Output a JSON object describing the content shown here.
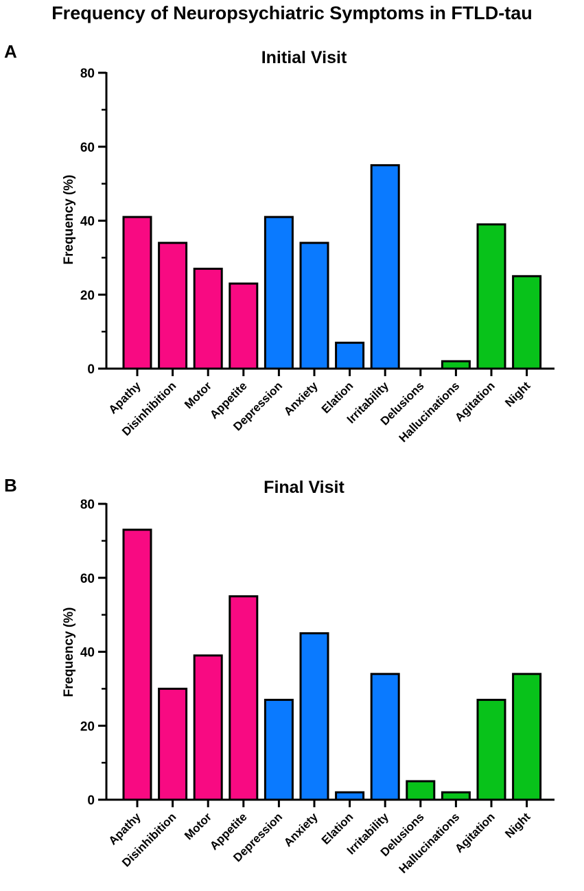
{
  "figure": {
    "title": "Frequency of Neuropsychiatric Symptoms in FTLD-tau"
  },
  "colors": {
    "pink": "#f80a82",
    "blue": "#0a7aff",
    "green": "#08c21a",
    "axis": "#000000"
  },
  "chart_data": [
    {
      "type": "bar",
      "panel_label": "A",
      "title": "Initial Visit",
      "xlabel": "",
      "ylabel": "Frequency (%)",
      "ylim": [
        0,
        80
      ],
      "yticks": [
        "0",
        "20",
        "40",
        "60",
        "80"
      ],
      "grid": false,
      "categories": [
        "Apathy",
        "Disinhibition",
        "Motor",
        "Appetite",
        "Depression",
        "Anxiety",
        "Elation",
        "Irritability",
        "Delusions",
        "Hallucinations",
        "Agitation",
        "Night"
      ],
      "values": [
        41,
        34,
        27,
        23,
        41,
        34,
        7,
        55,
        0,
        2,
        39,
        25
      ],
      "bar_colors": [
        "pink",
        "pink",
        "pink",
        "pink",
        "blue",
        "blue",
        "blue",
        "blue",
        "green",
        "green",
        "green",
        "green"
      ]
    },
    {
      "type": "bar",
      "panel_label": "B",
      "title": "Final Visit",
      "xlabel": "",
      "ylabel": "Frequency (%)",
      "ylim": [
        0,
        80
      ],
      "yticks": [
        "0",
        "20",
        "40",
        "60",
        "80"
      ],
      "grid": false,
      "categories": [
        "Apathy",
        "Disinhibition",
        "Motor",
        "Appetite",
        "Depression",
        "Anxiety",
        "Elation",
        "Irritability",
        "Delusions",
        "Hallucinations",
        "Agitation",
        "Night"
      ],
      "values": [
        73,
        30,
        39,
        55,
        27,
        45,
        2,
        34,
        5,
        2,
        27,
        34
      ],
      "bar_colors": [
        "pink",
        "pink",
        "pink",
        "pink",
        "blue",
        "blue",
        "blue",
        "blue",
        "green",
        "green",
        "green",
        "green"
      ]
    }
  ]
}
